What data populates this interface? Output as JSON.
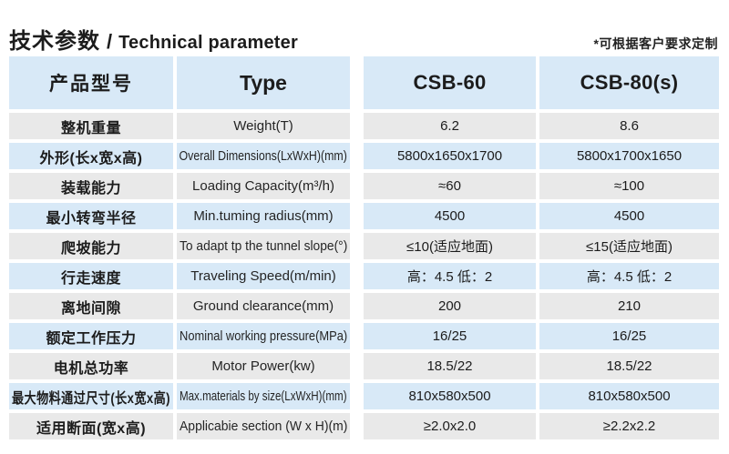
{
  "page": {
    "title_zh": "技术参数",
    "title_sep": "/",
    "title_en": "Technical parameter",
    "note": "*可根据客户要求定制"
  },
  "table": {
    "headers": {
      "product_model": "产品型号",
      "type": "Type",
      "model_1": "CSB-60",
      "model_2": "CSB-80(s)"
    },
    "rows": [
      {
        "zh": "整机重量",
        "en": "Weight(T)",
        "csb60": "6.2",
        "csb80": "8.6"
      },
      {
        "zh": "外形(长x宽x高)",
        "en": "Overall Dimensions(LxWxH)(mm)",
        "csb60": "5800x1650x1700",
        "csb80": "5800x1700x1650"
      },
      {
        "zh": "装载能力",
        "en": "Loading Capacity(m³/h)",
        "csb60": "≈60",
        "csb80": "≈100"
      },
      {
        "zh": "最小转弯半径",
        "en": "Min.tuming radius(mm)",
        "csb60": "4500",
        "csb80": "4500"
      },
      {
        "zh": "爬坡能力",
        "en": "To adapt tp the tunnel slope(°)",
        "csb60": "≤10(适应地面)",
        "csb80": "≤15(适应地面)"
      },
      {
        "zh": "行走速度",
        "en": "Traveling Speed(m/min)",
        "csb60": "高：4.5 低：2",
        "csb80": "高：4.5 低：2"
      },
      {
        "zh": "离地间隙",
        "en": "Ground clearance(mm)",
        "csb60": "200",
        "csb80": "210"
      },
      {
        "zh": "额定工作压力",
        "en": "Nominal working pressure(MPa)",
        "csb60": "16/25",
        "csb80": "16/25"
      },
      {
        "zh": "电机总功率",
        "en": "Motor Power(kw)",
        "csb60": "18.5/22",
        "csb80": "18.5/22"
      },
      {
        "zh": "最大物料通过尺寸(长x宽x高)",
        "en": "Max.materials by size(LxWxH)(mm)",
        "csb60": "810x580x500",
        "csb80": "810x580x500"
      },
      {
        "zh": "适用断面(宽x高)",
        "en": "Applicabie section (W x H)(m)",
        "csb60": "≥2.0x2.0",
        "csb80": "≥2.2x2.2"
      }
    ]
  },
  "colors": {
    "row_blue": "#d8e9f7",
    "row_gray": "#e9e9e9",
    "text": "#1c1c1c"
  }
}
